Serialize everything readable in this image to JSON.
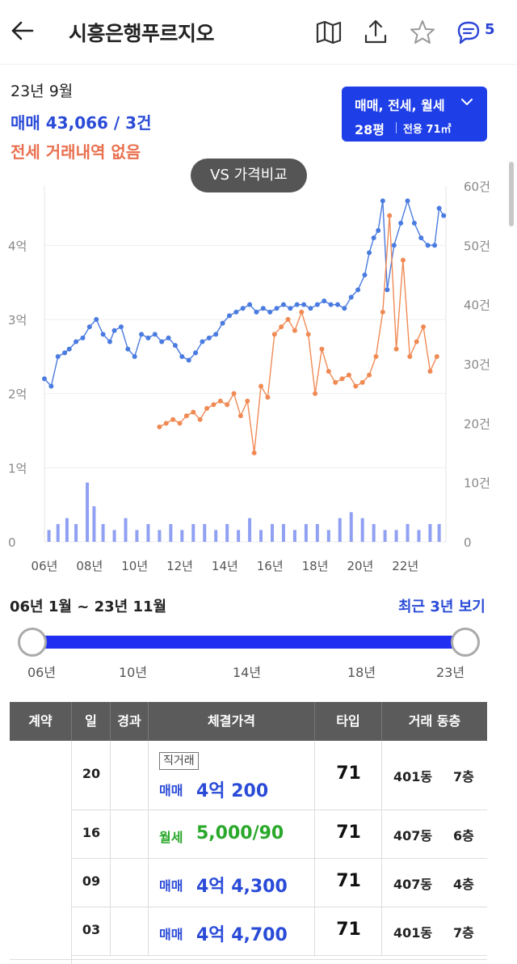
{
  "header": {
    "title": "시흥은행푸르지오",
    "chat_count": "5"
  },
  "info": {
    "date": "23년 9월",
    "sale": "매매 43,066 / 3건",
    "lease": "전세 거래내역 없음"
  },
  "filter": {
    "types": "매매, 전세, 월세",
    "size": "28평",
    "area": "전용 71㎡"
  },
  "vs_button": "VS 가격비교",
  "range": {
    "label": "06년 1월 ~ 23년 11월",
    "recent": "최근 3년 보기",
    "ticks": [
      "06년",
      "10년",
      "14년",
      "18년",
      "23년"
    ]
  },
  "table": {
    "headers": [
      "계약",
      "일",
      "경과",
      "체결가격",
      "타입",
      "거래 동층"
    ],
    "rows": [
      {
        "day": "20",
        "tag": "직거래",
        "kind": "매매",
        "price": "4억 200",
        "type": "71",
        "dong": "401동",
        "floor": "7층",
        "kind_color": "#2a4bd7"
      },
      {
        "day": "16",
        "tag": "",
        "kind": "월세",
        "price": "5,000/90",
        "type": "71",
        "dong": "407동",
        "floor": "6층",
        "kind_color": "#2aa82a"
      },
      {
        "day": "09",
        "tag": "",
        "kind": "매매",
        "price": "4억 4,300",
        "type": "71",
        "dong": "407동",
        "floor": "4층",
        "kind_color": "#2a4bd7"
      },
      {
        "day": "03",
        "tag": "",
        "kind": "매매",
        "price": "4억 4,700",
        "type": "71",
        "dong": "401동",
        "floor": "7층",
        "kind_color": "#2a4bd7"
      }
    ]
  },
  "chart_data": {
    "type": "line",
    "x_tick_labels": [
      "06년",
      "08년",
      "10년",
      "12년",
      "14년",
      "16년",
      "18년",
      "20년",
      "22년"
    ],
    "y_left_ticks": [
      "0",
      "1억",
      "2억",
      "3억",
      "4억"
    ],
    "y_right_ticks": [
      "0",
      "10건",
      "20건",
      "30건",
      "40건",
      "50건",
      "60건"
    ],
    "ylim_left": [
      0,
      4.8
    ],
    "ylim_right": [
      0,
      60
    ],
    "xlim": [
      2006,
      2023.8
    ],
    "series": [
      {
        "color": "#4a7be0",
        "x": [
          2006.0,
          2006.3,
          2006.6,
          2006.9,
          2007.1,
          2007.4,
          2007.7,
          2008.0,
          2008.3,
          2008.6,
          2008.9,
          2009.1,
          2009.4,
          2009.7,
          2010.0,
          2010.3,
          2010.6,
          2010.9,
          2011.2,
          2011.5,
          2011.8,
          2012.1,
          2012.4,
          2012.7,
          2013.0,
          2013.3,
          2013.6,
          2013.9,
          2014.2,
          2014.5,
          2014.8,
          2015.1,
          2015.4,
          2015.7,
          2016.0,
          2016.3,
          2016.6,
          2016.9,
          2017.2,
          2017.5,
          2017.8,
          2018.1,
          2018.4,
          2018.7,
          2019.0,
          2019.3,
          2019.6,
          2019.9,
          2020.2,
          2020.4,
          2020.6,
          2020.8,
          2021.0,
          2021.2,
          2021.5,
          2021.8,
          2022.1,
          2022.4,
          2022.7,
          2023.0,
          2023.3,
          2023.5,
          2023.7
        ],
        "y": [
          2.2,
          2.1,
          2.5,
          2.55,
          2.6,
          2.7,
          2.75,
          2.9,
          3.0,
          2.8,
          2.7,
          2.85,
          2.9,
          2.6,
          2.5,
          2.8,
          2.75,
          2.8,
          2.7,
          2.75,
          2.65,
          2.5,
          2.45,
          2.55,
          2.7,
          2.75,
          2.8,
          2.95,
          3.05,
          3.1,
          3.15,
          3.2,
          3.1,
          3.15,
          3.1,
          3.15,
          3.2,
          3.15,
          3.2,
          3.2,
          3.15,
          3.2,
          3.25,
          3.2,
          3.2,
          3.15,
          3.3,
          3.4,
          3.6,
          3.9,
          4.1,
          4.2,
          4.6,
          3.4,
          4.0,
          4.3,
          4.6,
          4.3,
          4.1,
          4.0,
          4.0,
          4.5,
          4.4
        ]
      },
      {
        "color": "#f08a55",
        "x": [
          2011.1,
          2011.4,
          2011.7,
          2012.0,
          2012.3,
          2012.6,
          2012.9,
          2013.2,
          2013.5,
          2013.8,
          2014.1,
          2014.4,
          2014.7,
          2015.0,
          2015.3,
          2015.6,
          2015.9,
          2016.2,
          2016.5,
          2016.8,
          2017.1,
          2017.4,
          2017.7,
          2018.0,
          2018.3,
          2018.6,
          2018.9,
          2019.2,
          2019.5,
          2019.8,
          2020.1,
          2020.4,
          2020.7,
          2021.0,
          2021.3,
          2021.6,
          2021.9,
          2022.2,
          2022.5,
          2022.8,
          2023.1,
          2023.4
        ],
        "y": [
          1.55,
          1.6,
          1.65,
          1.6,
          1.7,
          1.75,
          1.65,
          1.8,
          1.85,
          1.9,
          1.85,
          2.0,
          1.7,
          1.9,
          1.2,
          2.1,
          1.95,
          2.8,
          2.9,
          3.0,
          2.85,
          3.1,
          2.8,
          2.0,
          2.6,
          2.3,
          2.15,
          2.2,
          2.25,
          2.1,
          2.15,
          2.25,
          2.5,
          3.1,
          4.4,
          2.6,
          3.8,
          2.5,
          2.7,
          2.9,
          2.3,
          2.5
        ]
      }
    ],
    "volume_bars": {
      "x": [
        2006.2,
        2006.6,
        2007.0,
        2007.4,
        2007.9,
        2008.2,
        2008.6,
        2009.1,
        2009.6,
        2010.1,
        2010.6,
        2011.1,
        2011.6,
        2012.1,
        2012.6,
        2013.1,
        2013.6,
        2014.1,
        2014.6,
        2015.1,
        2015.6,
        2016.1,
        2016.6,
        2017.1,
        2017.6,
        2018.1,
        2018.6,
        2019.1,
        2019.6,
        2020.1,
        2020.6,
        2021.1,
        2021.6,
        2022.1,
        2022.6,
        2023.1,
        2023.5
      ],
      "values": [
        2,
        3,
        4,
        3,
        10,
        6,
        3,
        2,
        4,
        2,
        3,
        2,
        3,
        2,
        3,
        3,
        2,
        3,
        2,
        4,
        2,
        3,
        3,
        2,
        3,
        3,
        2,
        4,
        5,
        4,
        3,
        2,
        2,
        3,
        2,
        3,
        3
      ]
    },
    "grid": true
  }
}
